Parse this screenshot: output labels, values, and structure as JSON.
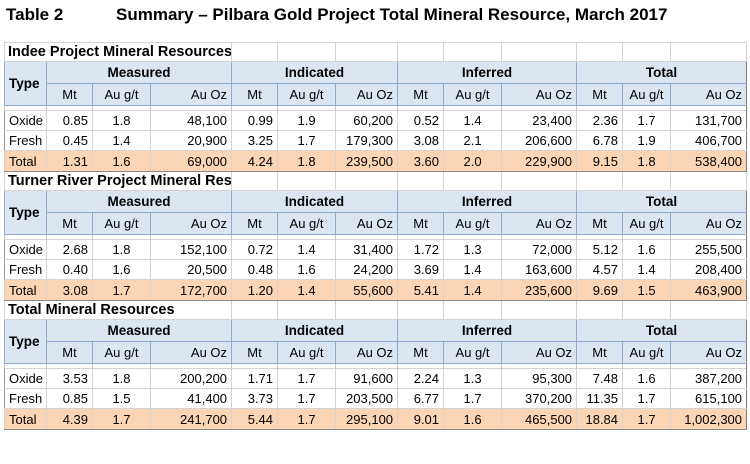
{
  "title": {
    "number": "Table 2",
    "text": "Summary – Pilbara Gold Project Total Mineral Resource, March 2017"
  },
  "headers": {
    "type": "Type",
    "groups": [
      "Measured",
      "Indicated",
      "Inferred",
      "Total"
    ],
    "cols": [
      "Mt",
      "Au g/t",
      "Au Oz"
    ]
  },
  "sections": [
    {
      "title": "Indee Project Mineral Resources",
      "rows": [
        {
          "label": "Oxide",
          "values": [
            "0.85",
            "1.8",
            "48,100",
            "0.99",
            "1.9",
            "60,200",
            "0.52",
            "1.4",
            "23,400",
            "2.36",
            "1.7",
            "131,700"
          ]
        },
        {
          "label": "Fresh",
          "values": [
            "0.45",
            "1.4",
            "20,900",
            "3.25",
            "1.7",
            "179,300",
            "3.08",
            "2.1",
            "206,600",
            "6.78",
            "1.9",
            "406,700"
          ]
        }
      ],
      "total": {
        "label": "Total",
        "values": [
          "1.31",
          "1.6",
          "69,000",
          "4.24",
          "1.8",
          "239,500",
          "3.60",
          "2.0",
          "229,900",
          "9.15",
          "1.8",
          "538,400"
        ]
      }
    },
    {
      "title": "Turner River Project Mineral Resources",
      "rows": [
        {
          "label": "Oxide",
          "values": [
            "2.68",
            "1.8",
            "152,100",
            "0.72",
            "1.4",
            "31,400",
            "1.72",
            "1.3",
            "72,000",
            "5.12",
            "1.6",
            "255,500"
          ]
        },
        {
          "label": "Fresh",
          "values": [
            "0.40",
            "1.6",
            "20,500",
            "0.48",
            "1.6",
            "24,200",
            "3.69",
            "1.4",
            "163,600",
            "4.57",
            "1.4",
            "208,400"
          ]
        }
      ],
      "total": {
        "label": "Total",
        "values": [
          "3.08",
          "1.7",
          "172,700",
          "1.20",
          "1.4",
          "55,600",
          "5.41",
          "1.4",
          "235,600",
          "9.69",
          "1.5",
          "463,900"
        ]
      }
    },
    {
      "title": "Total Mineral Resources",
      "rows": [
        {
          "label": "Oxide",
          "values": [
            "3.53",
            "1.8",
            "200,200",
            "1.71",
            "1.7",
            "91,600",
            "2.24",
            "1.3",
            "95,300",
            "7.48",
            "1.6",
            "387,200"
          ]
        },
        {
          "label": "Fresh",
          "values": [
            "0.85",
            "1.5",
            "41,400",
            "3.73",
            "1.7",
            "203,500",
            "6.77",
            "1.7",
            "370,200",
            "11.35",
            "1.7",
            "615,100"
          ]
        }
      ],
      "total": {
        "label": "Total",
        "values": [
          "4.39",
          "1.7",
          "241,700",
          "5.44",
          "1.7",
          "295,100",
          "9.01",
          "1.6",
          "465,500",
          "18.84",
          "1.7",
          "1,002,300"
        ]
      }
    }
  ]
}
